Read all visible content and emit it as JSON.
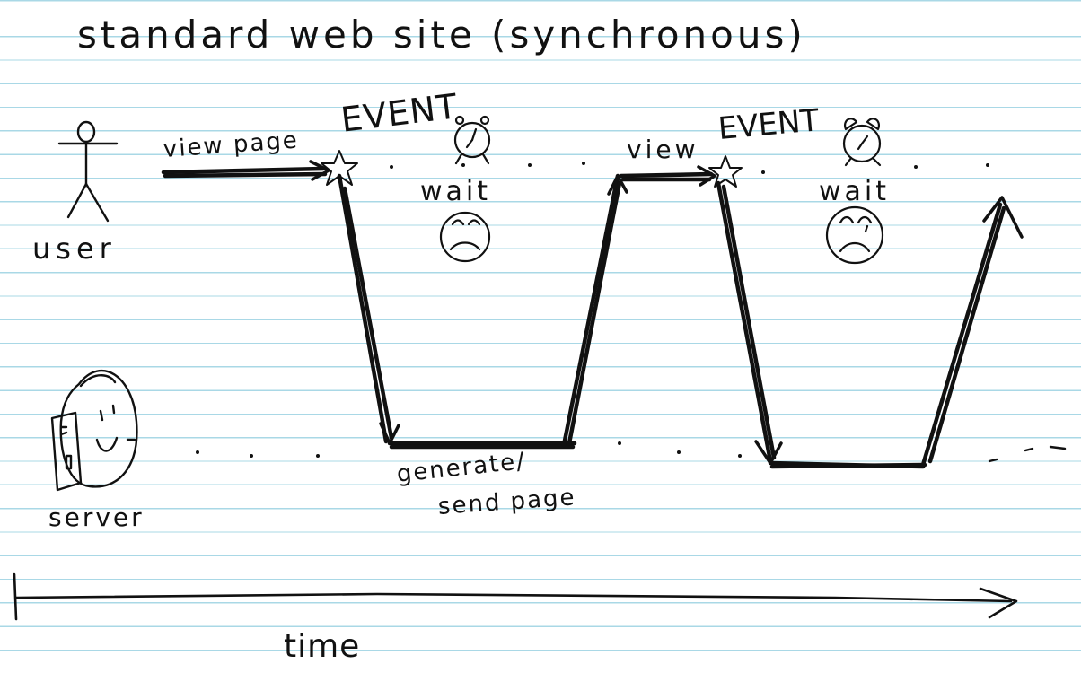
{
  "title": "standard web site (synchronous)",
  "actors": {
    "user": "user",
    "server": "server"
  },
  "flow": {
    "view_page": "view page",
    "event_1": "EVENT",
    "wait_1": "wait",
    "generate_send_line1": "generate/",
    "generate_send_line2": "send page",
    "view_2": "view",
    "event_2": "EVENT",
    "wait_2": "wait"
  },
  "timeline": {
    "label": "time"
  },
  "colors": {
    "ink": "#111111",
    "ruled_line": "#a9d8e6",
    "paper": "#ffffff"
  }
}
